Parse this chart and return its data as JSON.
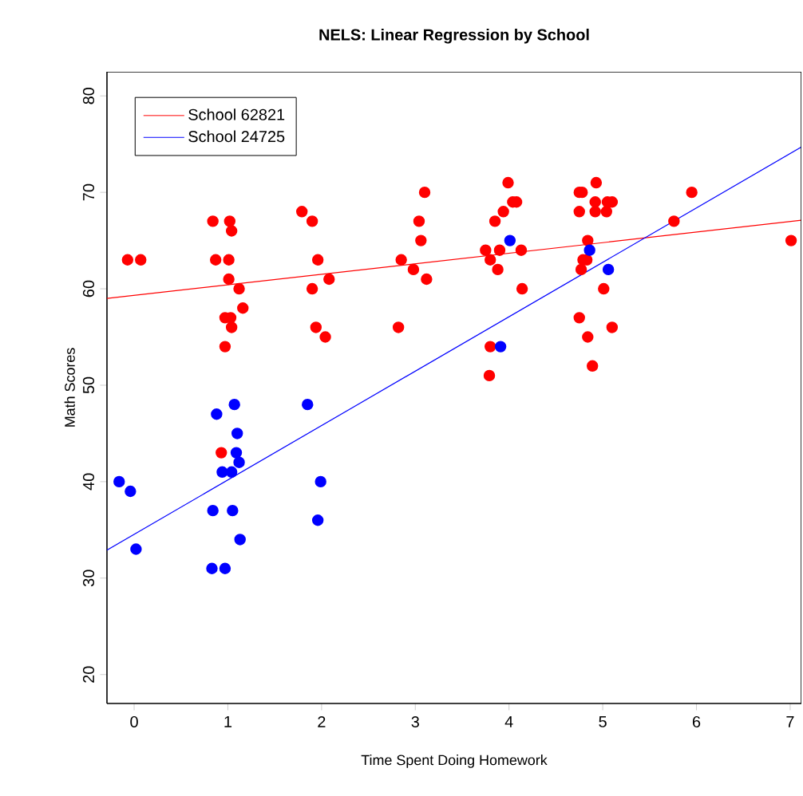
{
  "chart_data": {
    "type": "scatter",
    "title": "NELS: Linear Regression by School",
    "xlabel": "Time Spent Doing Homework",
    "ylabel": "Math Scores",
    "xlim": [
      -0.29,
      7.12
    ],
    "ylim": [
      17,
      82.5
    ],
    "xticks": [
      0,
      1,
      2,
      3,
      4,
      5,
      6,
      7
    ],
    "yticks": [
      20,
      30,
      40,
      50,
      60,
      70,
      80
    ],
    "legend": "top left",
    "series": [
      {
        "marker": "circle",
        "color": "#ff0000",
        "x": [
          -0.07,
          0.07,
          0.84,
          1.02,
          1.04,
          0.87,
          1.01,
          1.01,
          1.12,
          1.16,
          0.97,
          1.03,
          1.04,
          0.97,
          0.93,
          1.79,
          1.9,
          1.96,
          1.9,
          2.08,
          1.94,
          2.04,
          3.1,
          3.04,
          3.06,
          2.85,
          2.98,
          3.12,
          2.82,
          3.99,
          4.04,
          4.08,
          3.94,
          3.85,
          3.75,
          3.9,
          4.13,
          3.8,
          3.88,
          4.14,
          3.8,
          3.79,
          4.93,
          4.75,
          4.78,
          4.92,
          5.05,
          5.1,
          4.75,
          4.92,
          5.04,
          4.84,
          4.79,
          4.83,
          4.77,
          5.01,
          4.75,
          5.1,
          4.84,
          4.89,
          5.95,
          5.76,
          7.01
        ],
        "values": [
          63,
          63,
          67,
          67,
          66,
          63,
          63,
          61,
          60,
          58,
          57,
          57,
          56,
          54,
          43,
          68,
          67,
          63,
          60,
          61,
          56,
          55,
          70,
          67,
          65,
          63,
          62,
          61,
          56,
          71,
          69,
          69,
          68,
          67,
          64,
          64,
          64,
          63,
          62,
          60,
          54,
          51,
          71,
          70,
          70,
          69,
          69,
          69,
          68,
          68,
          68,
          65,
          63,
          63,
          62,
          60,
          57,
          56,
          55,
          52,
          70,
          67,
          65
        ]
      },
      {
        "marker": "circle",
        "color": "#0000ff",
        "x": [
          1.07,
          0.88,
          1.85,
          1.1,
          1.09,
          1.12,
          0.94,
          1.04,
          -0.16,
          -0.04,
          1.99,
          0.84,
          1.05,
          1.96,
          1.13,
          0.02,
          0.83,
          0.97,
          4.01,
          3.91,
          4.86,
          5.06
        ],
        "values": [
          48,
          47,
          48,
          45,
          43,
          42,
          41,
          41,
          40,
          39,
          40,
          37,
          37,
          36,
          34,
          33,
          31,
          31,
          65,
          54,
          64,
          62
        ]
      },
      {
        "type": "line",
        "marker": "none",
        "name": "School 62821",
        "color": "#ff0000",
        "x": [
          -0.29,
          7.12
        ],
        "values": [
          59.0,
          67.1
        ]
      },
      {
        "type": "line",
        "marker": "none",
        "name": "School 24725",
        "color": "#0000ff",
        "x": [
          -0.29,
          7.12
        ],
        "values": [
          32.9,
          74.7
        ]
      }
    ]
  }
}
